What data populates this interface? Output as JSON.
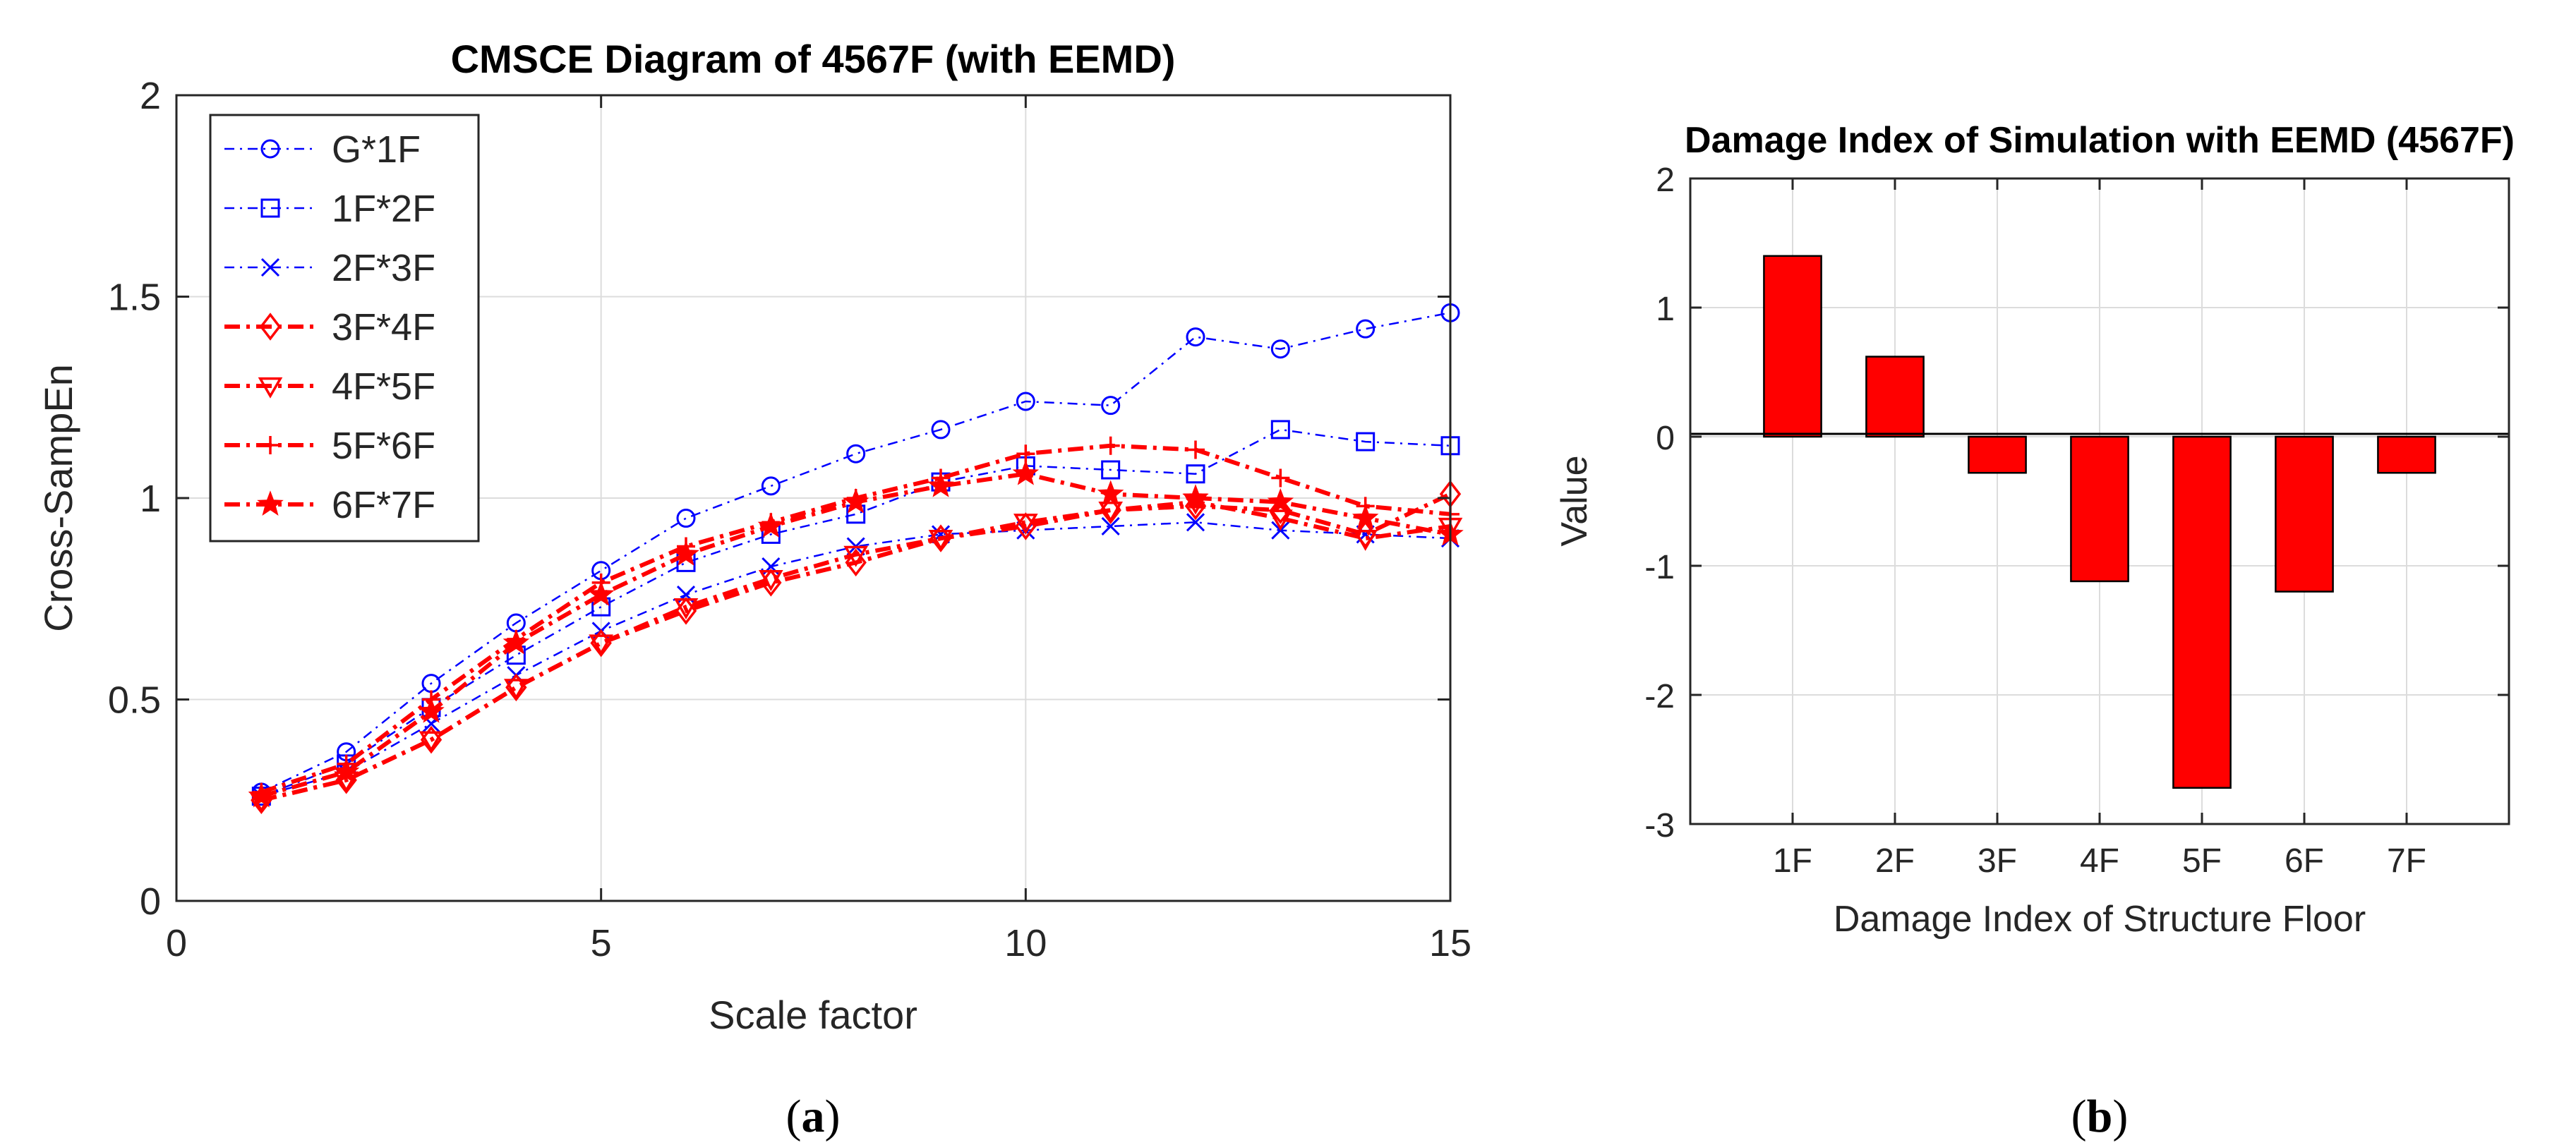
{
  "chart_data": [
    {
      "type": "line",
      "title": "CMSCE Diagram of 4567F (with EEMD)",
      "xlabel": "Scale factor",
      "ylabel": "Cross-SampEn",
      "xlim": [
        0,
        15
      ],
      "ylim": [
        0,
        2
      ],
      "xticks": [
        0,
        5,
        10,
        15
      ],
      "yticks": [
        0,
        0.5,
        1,
        1.5,
        2
      ],
      "xtick_labels": [
        "0",
        "5",
        "10",
        "15"
      ],
      "ytick_labels": [
        "0",
        "0.5",
        "1",
        "1.5",
        "2"
      ],
      "grid": true,
      "legend_position": "top-left",
      "x": [
        1,
        2,
        3,
        4,
        5,
        6,
        7,
        8,
        9,
        10,
        11,
        12,
        13,
        14,
        15
      ],
      "series": [
        {
          "name": "G*1F",
          "color": "#0000ff",
          "marker": "circle",
          "style": "dashdot",
          "values": [
            0.27,
            0.37,
            0.54,
            0.69,
            0.82,
            0.95,
            1.03,
            1.11,
            1.17,
            1.24,
            1.23,
            1.4,
            1.37,
            1.42,
            1.46
          ]
        },
        {
          "name": "1F*2F",
          "color": "#0000ff",
          "marker": "square",
          "style": "dashdot",
          "values": [
            0.26,
            0.34,
            0.48,
            0.61,
            0.73,
            0.84,
            0.91,
            0.96,
            1.04,
            1.08,
            1.07,
            1.06,
            1.17,
            1.14,
            1.13
          ]
        },
        {
          "name": "2F*3F",
          "color": "#0000ff",
          "marker": "x",
          "style": "dashdot",
          "values": [
            0.26,
            0.32,
            0.44,
            0.56,
            0.67,
            0.76,
            0.83,
            0.88,
            0.91,
            0.92,
            0.93,
            0.94,
            0.92,
            0.91,
            0.9
          ]
        },
        {
          "name": "3F*4F",
          "color": "#ff0000",
          "marker": "diamond",
          "style": "dashdot",
          "values": [
            0.25,
            0.3,
            0.4,
            0.53,
            0.64,
            0.72,
            0.79,
            0.84,
            0.9,
            0.93,
            0.97,
            0.98,
            0.97,
            0.91,
            1.01
          ]
        },
        {
          "name": "4F*5F",
          "color": "#ff0000",
          "marker": "triangle-down",
          "style": "dashdot",
          "values": [
            0.25,
            0.3,
            0.4,
            0.53,
            0.64,
            0.73,
            0.8,
            0.86,
            0.9,
            0.94,
            0.97,
            0.99,
            0.95,
            0.9,
            0.93
          ]
        },
        {
          "name": "5F*6F",
          "color": "#ff0000",
          "marker": "plus",
          "style": "dashdot",
          "values": [
            0.27,
            0.34,
            0.5,
            0.65,
            0.79,
            0.88,
            0.94,
            1.0,
            1.05,
            1.11,
            1.13,
            1.12,
            1.05,
            0.98,
            0.96
          ]
        },
        {
          "name": "6F*7F",
          "color": "#ff0000",
          "marker": "star",
          "style": "dashdot",
          "values": [
            0.26,
            0.32,
            0.47,
            0.64,
            0.76,
            0.86,
            0.93,
            0.99,
            1.03,
            1.06,
            1.01,
            1.0,
            0.99,
            0.95,
            0.91
          ]
        }
      ]
    },
    {
      "type": "bar",
      "title": "Damage Index of Simulation with EEMD (4567F)",
      "xlabel": "Damage Index of Structure Floor",
      "ylabel": "Value",
      "categories": [
        "1F",
        "2F",
        "3F",
        "4F",
        "5F",
        "6F",
        "7F"
      ],
      "values": [
        1.4,
        0.62,
        -0.28,
        -1.12,
        -2.72,
        -1.2,
        -0.28
      ],
      "ylim": [
        -3,
        2
      ],
      "yticks": [
        -3,
        -2,
        -1,
        0,
        1,
        2
      ],
      "ytick_labels": [
        "-3",
        "-2",
        "-1",
        "0",
        "1",
        "2"
      ],
      "bar_color": "#ff0000",
      "grid": true
    }
  ],
  "panel_labels": [
    {
      "open": "(",
      "letter": "a",
      "close": ")"
    },
    {
      "open": "(",
      "letter": "b",
      "close": ")"
    }
  ]
}
